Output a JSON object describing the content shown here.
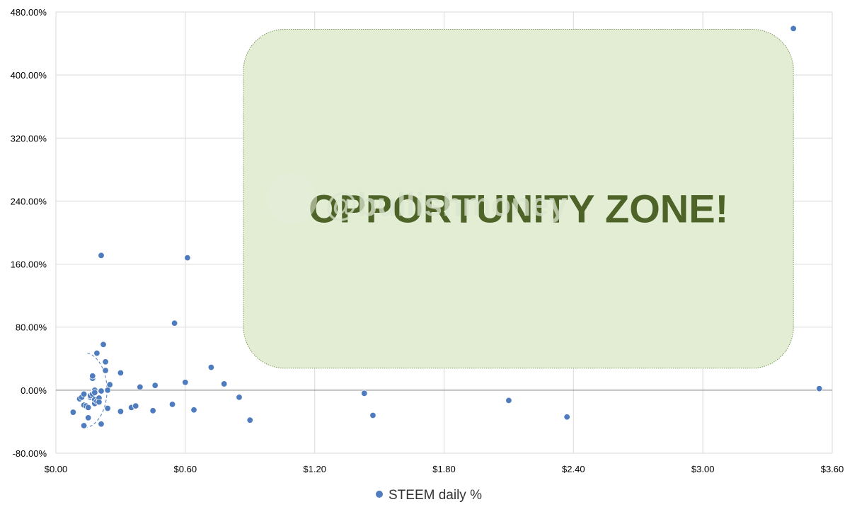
{
  "chart_data": {
    "type": "scatter",
    "title": "",
    "xlabel": "",
    "ylabel": "",
    "xlim": [
      0,
      3.6
    ],
    "ylim": [
      -80,
      480
    ],
    "x_ticks": [
      0,
      0.6,
      1.2,
      1.8,
      2.4,
      3.0,
      3.6
    ],
    "x_tick_labels": [
      "$0.00",
      "$0.60",
      "$1.20",
      "$1.80",
      "$2.40",
      "$3.00",
      "$3.60"
    ],
    "y_ticks": [
      -80,
      0,
      80,
      160,
      240,
      320,
      400,
      480
    ],
    "y_tick_labels": [
      "-80.00%",
      "0.00%",
      "80.00%",
      "160.00%",
      "240.00%",
      "320.00%",
      "400.00%",
      "480.00%"
    ],
    "grid": true,
    "legend_position": "bottom",
    "series": [
      {
        "name": "STEEM daily %",
        "color": "#4f7bbf",
        "points": [
          [
            0.08,
            -28
          ],
          [
            0.11,
            -11
          ],
          [
            0.12,
            -9
          ],
          [
            0.13,
            -5
          ],
          [
            0.13,
            -19
          ],
          [
            0.13,
            -45
          ],
          [
            0.14,
            -20
          ],
          [
            0.15,
            -35
          ],
          [
            0.15,
            -22
          ],
          [
            0.16,
            -9
          ],
          [
            0.16,
            -7
          ],
          [
            0.17,
            -5
          ],
          [
            0.17,
            15
          ],
          [
            0.17,
            18
          ],
          [
            0.18,
            -17
          ],
          [
            0.18,
            -12
          ],
          [
            0.18,
            -2
          ],
          [
            0.18,
            0
          ],
          [
            0.18,
            -3
          ],
          [
            0.19,
            47
          ],
          [
            0.19,
            -14
          ],
          [
            0.2,
            -10
          ],
          [
            0.2,
            -15
          ],
          [
            0.21,
            171
          ],
          [
            0.21,
            -1
          ],
          [
            0.21,
            -43
          ],
          [
            0.22,
            58
          ],
          [
            0.23,
            36
          ],
          [
            0.23,
            25
          ],
          [
            0.24,
            -23
          ],
          [
            0.24,
            0
          ],
          [
            0.25,
            7
          ],
          [
            0.3,
            -27
          ],
          [
            0.3,
            22
          ],
          [
            0.35,
            -22
          ],
          [
            0.37,
            -20
          ],
          [
            0.39,
            4
          ],
          [
            0.45,
            -26
          ],
          [
            0.46,
            6
          ],
          [
            0.54,
            -18
          ],
          [
            0.55,
            85
          ],
          [
            0.6,
            10
          ],
          [
            0.61,
            168
          ],
          [
            0.64,
            -25
          ],
          [
            0.72,
            29
          ],
          [
            0.78,
            8
          ],
          [
            0.85,
            -9
          ],
          [
            0.9,
            -38
          ],
          [
            1.43,
            -4
          ],
          [
            1.47,
            -32
          ],
          [
            2.1,
            -13
          ],
          [
            2.37,
            -34
          ],
          [
            3.42,
            459
          ],
          [
            3.54,
            2
          ]
        ]
      }
    ],
    "annotations": {
      "opportunity_zone": {
        "label": "OPPORTUNITY ZONE!",
        "x_range": [
          0.87,
          3.42
        ],
        "y_range": [
          28,
          458
        ],
        "fill": "#e2edd4",
        "text_color": "#4e6327"
      },
      "dashed_arc": {
        "center": [
          0.165,
          0
        ],
        "radius_x": 0.11,
        "radius_y": 48,
        "color": "#4f7bbf"
      },
      "watermark": "@bullishmoney"
    },
    "colors": {
      "grid": "#d9d9d9",
      "axis": "#808080",
      "tick_label": "#000000"
    }
  }
}
